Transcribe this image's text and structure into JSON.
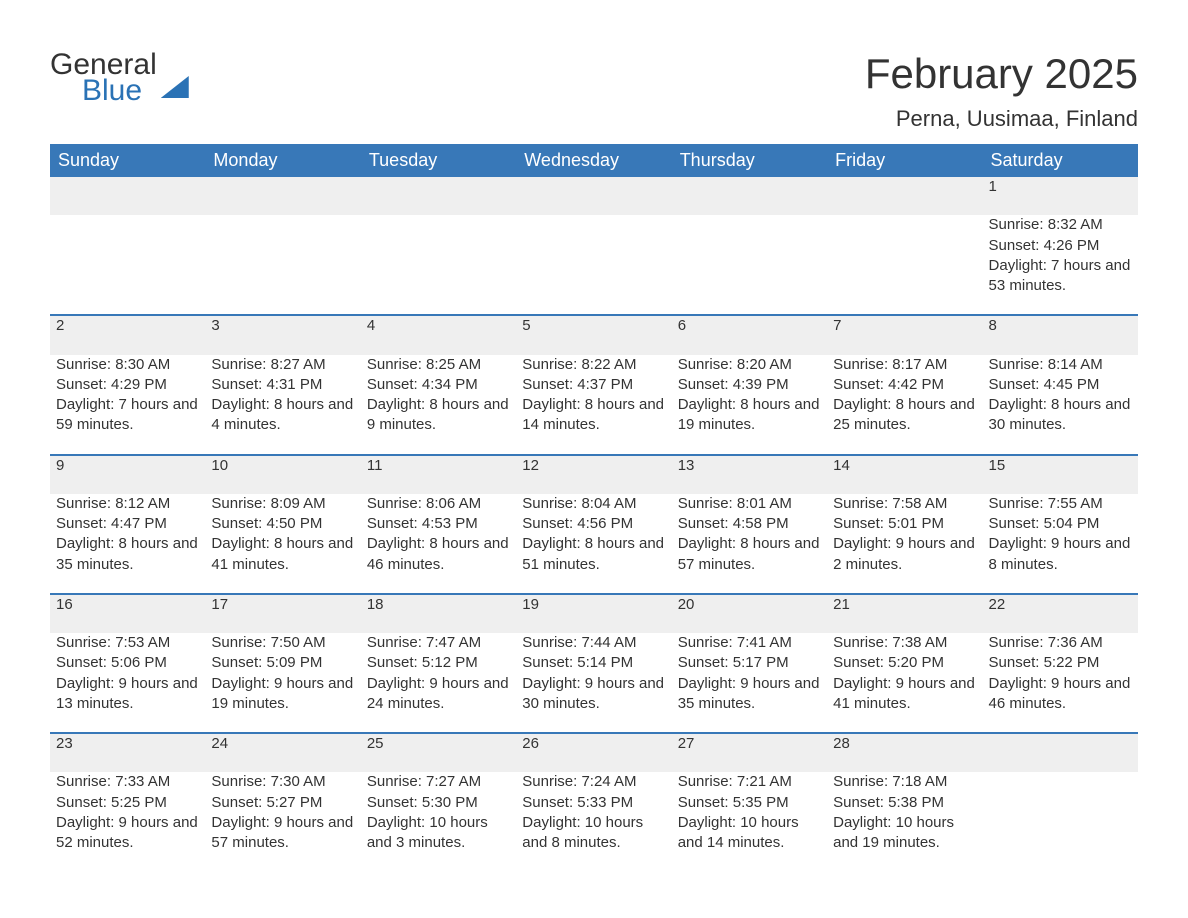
{
  "logo": {
    "part1": "General",
    "part2": "Blue"
  },
  "title": "February 2025",
  "location": "Perna, Uusimaa, Finland",
  "colors": {
    "header_bg": "#3878b8",
    "header_text": "#ffffff",
    "row_accent": "#3878b8",
    "daynum_bg": "#efefef",
    "body_text": "#333333",
    "logo_blue": "#2a72b5",
    "page_bg": "#ffffff"
  },
  "weekdays": [
    "Sunday",
    "Monday",
    "Tuesday",
    "Wednesday",
    "Thursday",
    "Friday",
    "Saturday"
  ],
  "layout": {
    "columns": 7,
    "rows": 5,
    "start_weekday_index": 6,
    "days_in_month": 28
  },
  "labels": {
    "sunrise": "Sunrise",
    "sunset": "Sunset",
    "daylight": "Daylight"
  },
  "days": {
    "1": {
      "sunrise": "8:32 AM",
      "sunset": "4:26 PM",
      "daylight": "7 hours and 53 minutes."
    },
    "2": {
      "sunrise": "8:30 AM",
      "sunset": "4:29 PM",
      "daylight": "7 hours and 59 minutes."
    },
    "3": {
      "sunrise": "8:27 AM",
      "sunset": "4:31 PM",
      "daylight": "8 hours and 4 minutes."
    },
    "4": {
      "sunrise": "8:25 AM",
      "sunset": "4:34 PM",
      "daylight": "8 hours and 9 minutes."
    },
    "5": {
      "sunrise": "8:22 AM",
      "sunset": "4:37 PM",
      "daylight": "8 hours and 14 minutes."
    },
    "6": {
      "sunrise": "8:20 AM",
      "sunset": "4:39 PM",
      "daylight": "8 hours and 19 minutes."
    },
    "7": {
      "sunrise": "8:17 AM",
      "sunset": "4:42 PM",
      "daylight": "8 hours and 25 minutes."
    },
    "8": {
      "sunrise": "8:14 AM",
      "sunset": "4:45 PM",
      "daylight": "8 hours and 30 minutes."
    },
    "9": {
      "sunrise": "8:12 AM",
      "sunset": "4:47 PM",
      "daylight": "8 hours and 35 minutes."
    },
    "10": {
      "sunrise": "8:09 AM",
      "sunset": "4:50 PM",
      "daylight": "8 hours and 41 minutes."
    },
    "11": {
      "sunrise": "8:06 AM",
      "sunset": "4:53 PM",
      "daylight": "8 hours and 46 minutes."
    },
    "12": {
      "sunrise": "8:04 AM",
      "sunset": "4:56 PM",
      "daylight": "8 hours and 51 minutes."
    },
    "13": {
      "sunrise": "8:01 AM",
      "sunset": "4:58 PM",
      "daylight": "8 hours and 57 minutes."
    },
    "14": {
      "sunrise": "7:58 AM",
      "sunset": "5:01 PM",
      "daylight": "9 hours and 2 minutes."
    },
    "15": {
      "sunrise": "7:55 AM",
      "sunset": "5:04 PM",
      "daylight": "9 hours and 8 minutes."
    },
    "16": {
      "sunrise": "7:53 AM",
      "sunset": "5:06 PM",
      "daylight": "9 hours and 13 minutes."
    },
    "17": {
      "sunrise": "7:50 AM",
      "sunset": "5:09 PM",
      "daylight": "9 hours and 19 minutes."
    },
    "18": {
      "sunrise": "7:47 AM",
      "sunset": "5:12 PM",
      "daylight": "9 hours and 24 minutes."
    },
    "19": {
      "sunrise": "7:44 AM",
      "sunset": "5:14 PM",
      "daylight": "9 hours and 30 minutes."
    },
    "20": {
      "sunrise": "7:41 AM",
      "sunset": "5:17 PM",
      "daylight": "9 hours and 35 minutes."
    },
    "21": {
      "sunrise": "7:38 AM",
      "sunset": "5:20 PM",
      "daylight": "9 hours and 41 minutes."
    },
    "22": {
      "sunrise": "7:36 AM",
      "sunset": "5:22 PM",
      "daylight": "9 hours and 46 minutes."
    },
    "23": {
      "sunrise": "7:33 AM",
      "sunset": "5:25 PM",
      "daylight": "9 hours and 52 minutes."
    },
    "24": {
      "sunrise": "7:30 AM",
      "sunset": "5:27 PM",
      "daylight": "9 hours and 57 minutes."
    },
    "25": {
      "sunrise": "7:27 AM",
      "sunset": "5:30 PM",
      "daylight": "10 hours and 3 minutes."
    },
    "26": {
      "sunrise": "7:24 AM",
      "sunset": "5:33 PM",
      "daylight": "10 hours and 8 minutes."
    },
    "27": {
      "sunrise": "7:21 AM",
      "sunset": "5:35 PM",
      "daylight": "10 hours and 14 minutes."
    },
    "28": {
      "sunrise": "7:18 AM",
      "sunset": "5:38 PM",
      "daylight": "10 hours and 19 minutes."
    }
  }
}
